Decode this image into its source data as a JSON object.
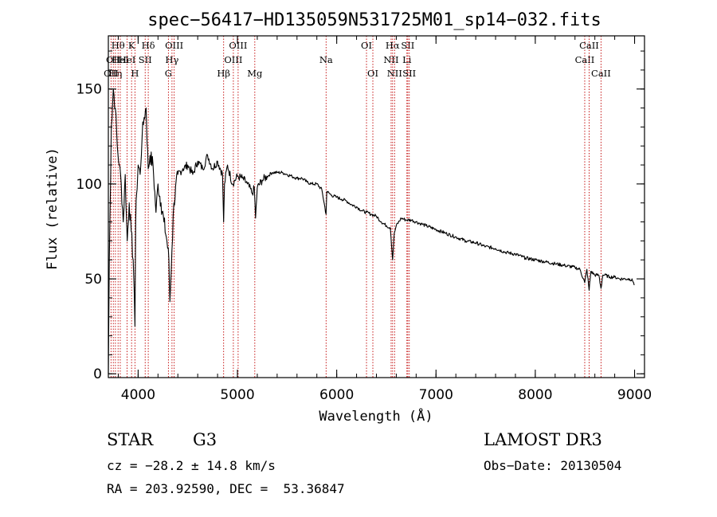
{
  "chart_data": {
    "type": "line",
    "title": "spec−56417−HD135059N531725M01_sp14−032.fits",
    "xlabel": "Wavelength (Å)",
    "ylabel": "Flux (relative)",
    "xlim": [
      3700,
      9100
    ],
    "ylim": [
      -2,
      178
    ],
    "x_ticks": [
      4000,
      5000,
      6000,
      7000,
      8000,
      9000
    ],
    "y_ticks": [
      0,
      50,
      100,
      150
    ],
    "grid": false,
    "legend": "none",
    "line_color": "#000000",
    "marker_color": "#c00000",
    "series": [
      {
        "x": [
          3700,
          3710,
          3730,
          3750,
          3770,
          3790,
          3810,
          3830,
          3850,
          3870,
          3890,
          3910,
          3930,
          3950,
          3960,
          3968,
          3975,
          3985,
          4000,
          4020,
          4040,
          4060,
          4080,
          4101,
          4120,
          4150,
          4180,
          4200,
          4230,
          4260,
          4290,
          4310,
          4320,
          4340,
          4360,
          4400,
          4450,
          4500,
          4550,
          4600,
          4650,
          4700,
          4750,
          4800,
          4850,
          4861,
          4870,
          4900,
          4950,
          5000,
          5050,
          5100,
          5150,
          5170,
          5183,
          5200,
          5250,
          5300,
          5350,
          5400,
          5450,
          5500,
          5550,
          5600,
          5650,
          5700,
          5750,
          5800,
          5850,
          5893,
          5900,
          5950,
          6000,
          6050,
          6100,
          6150,
          6200,
          6250,
          6300,
          6350,
          6400,
          6450,
          6500,
          6540,
          6563,
          6580,
          6600,
          6650,
          6700,
          6750,
          6800,
          6850,
          6900,
          7000,
          7100,
          7200,
          7300,
          7400,
          7500,
          7600,
          7700,
          7800,
          7900,
          8000,
          8100,
          8200,
          8300,
          8400,
          8450,
          8498,
          8520,
          8542,
          8560,
          8600,
          8640,
          8662,
          8680,
          8700,
          8750,
          8800,
          8850,
          8900,
          8950,
          8980,
          8990,
          9000
        ],
        "y": [
          0,
          60,
          130,
          150,
          140,
          120,
          110,
          100,
          80,
          105,
          70,
          90,
          75,
          60,
          45,
          25,
          80,
          95,
          110,
          105,
          125,
          135,
          140,
          108,
          115,
          110,
          85,
          100,
          90,
          80,
          70,
          60,
          38,
          65,
          90,
          105,
          108,
          110,
          105,
          112,
          108,
          115,
          108,
          112,
          105,
          80,
          100,
          110,
          100,
          104,
          103,
          100,
          95,
          98,
          82,
          98,
          102,
          104,
          106,
          106,
          106,
          105,
          104,
          103,
          103,
          101,
          100,
          100,
          97,
          84,
          96,
          94,
          93,
          92,
          91,
          89,
          88,
          86,
          85,
          84,
          83,
          80,
          78,
          77,
          60,
          74,
          78,
          82,
          81,
          81,
          80,
          79,
          78,
          76,
          74,
          72,
          70,
          69,
          67,
          66,
          64,
          63,
          61,
          60,
          59,
          58,
          57,
          56,
          55,
          48,
          55,
          44,
          54,
          52,
          52,
          45,
          52,
          52,
          51,
          51,
          50,
          50,
          50,
          49,
          48,
          47
        ]
      }
    ],
    "lines": [
      {
        "wave": 3727,
        "label": "OII",
        "row": 2
      },
      {
        "wave": 3750,
        "label": "OII",
        "row": 1
      },
      {
        "wave": 3771,
        "label": "Hη",
        "row": 2
      },
      {
        "wave": 3798,
        "label": "Hθ",
        "row": 0
      },
      {
        "wave": 3820,
        "label": "HeI",
        "row": 1
      },
      {
        "wave": 3889,
        "label": "HeI",
        "row": 1
      },
      {
        "wave": 3934,
        "label": "K",
        "row": 0
      },
      {
        "wave": 3968,
        "label": "H",
        "row": 2
      },
      {
        "wave": 4071,
        "label": "SII",
        "row": 1
      },
      {
        "wave": 4102,
        "label": "Hδ",
        "row": 0
      },
      {
        "wave": 4305,
        "label": "G",
        "row": 2
      },
      {
        "wave": 4341,
        "label": "Hγ",
        "row": 1
      },
      {
        "wave": 4363,
        "label": "OIII",
        "row": 0
      },
      {
        "wave": 4861,
        "label": "Hβ",
        "row": 2
      },
      {
        "wave": 4959,
        "label": "OIII",
        "row": 1
      },
      {
        "wave": 5007,
        "label": "OIII",
        "row": 0
      },
      {
        "wave": 5175,
        "label": "Mg",
        "row": 2
      },
      {
        "wave": 5893,
        "label": "Na",
        "row": 1
      },
      {
        "wave": 6300,
        "label": "OI",
        "row": 0
      },
      {
        "wave": 6364,
        "label": "OI",
        "row": 2
      },
      {
        "wave": 6548,
        "label": "NII",
        "row": 1
      },
      {
        "wave": 6563,
        "label": "Hα",
        "row": 0
      },
      {
        "wave": 6583,
        "label": "NII",
        "row": 2
      },
      {
        "wave": 6707,
        "label": "Li",
        "row": 1
      },
      {
        "wave": 6716,
        "label": "SII",
        "row": 0
      },
      {
        "wave": 6731,
        "label": "SII",
        "row": 2
      },
      {
        "wave": 8498,
        "label": "CaII",
        "row": 1
      },
      {
        "wave": 8542,
        "label": "CaII",
        "row": 0
      },
      {
        "wave": 8662,
        "label": "CaII",
        "row": 2
      }
    ]
  },
  "info": {
    "object_class": "STAR",
    "subclass": "G3",
    "survey": "LAMOST DR3",
    "cz": "cz = −28.2 ± 14.8 km/s",
    "obs_date": "Obs−Date: 20130504",
    "coords": "RA = 203.92590, DEC =  53.36847"
  }
}
